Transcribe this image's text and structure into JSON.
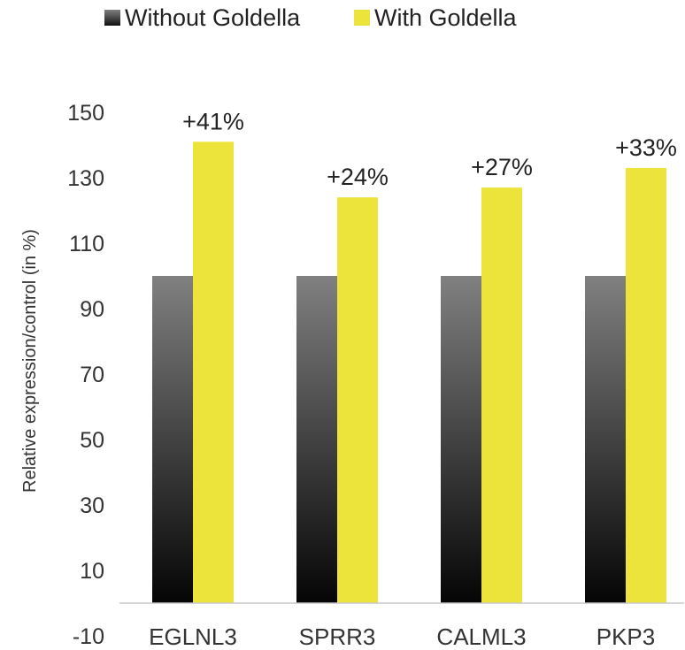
{
  "chart_data": {
    "type": "bar",
    "categories": [
      "EGLNL3",
      "SPRR3",
      "CALML3",
      "PKP3"
    ],
    "series": [
      {
        "name": "Without Goldella",
        "values": [
          100,
          100,
          100,
          100
        ],
        "color": "#808080"
      },
      {
        "name": "With Goldella",
        "values": [
          141,
          124,
          127,
          133
        ],
        "color": "#ece43a",
        "data_labels": [
          "+41%",
          "+24%",
          "+27%",
          "+33%"
        ]
      }
    ],
    "ylabel": "Relative expression/control (in %)",
    "xlabel": "",
    "yticks": [
      -10,
      10,
      30,
      50,
      70,
      90,
      110,
      130,
      150
    ],
    "ylim": [
      -10,
      150
    ],
    "grid": false,
    "legend": "top"
  }
}
